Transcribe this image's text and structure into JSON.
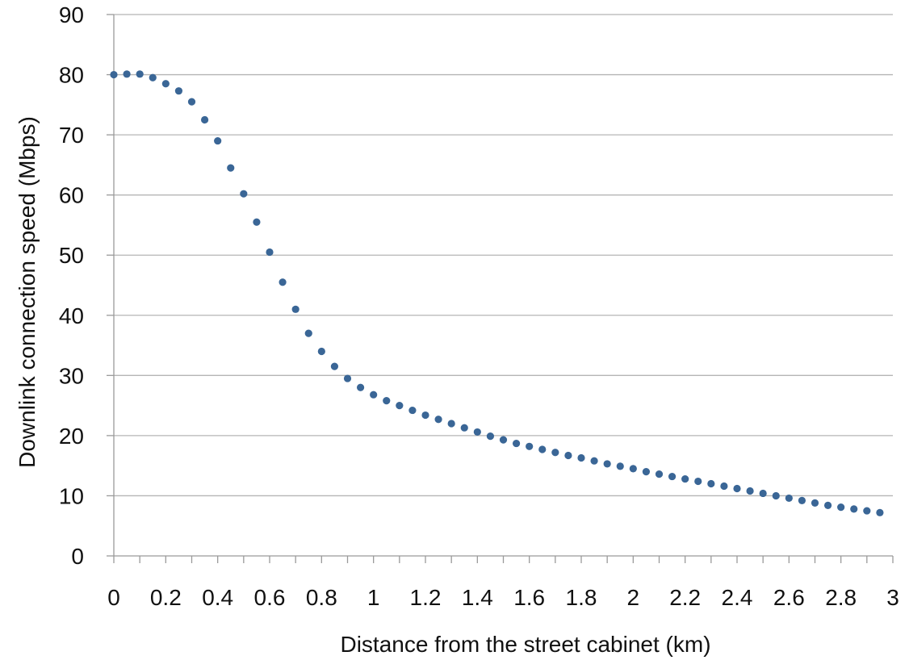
{
  "chart_data": {
    "type": "scatter",
    "title": "",
    "xlabel": "Distance from the street cabinet (km)",
    "ylabel": "Downlink connection speed (Mbps)",
    "xlim": [
      0,
      3
    ],
    "ylim": [
      0,
      90
    ],
    "x_ticks": [
      0,
      0.1,
      0.2,
      0.3,
      0.4,
      0.5,
      0.6,
      0.7,
      0.8,
      0.9,
      1,
      1.1,
      1.2,
      1.3,
      1.4,
      1.5,
      1.6,
      1.7,
      1.8,
      1.9,
      2,
      2.1,
      2.2,
      2.3,
      2.4,
      2.5,
      2.6,
      2.7,
      2.8,
      2.9,
      3
    ],
    "x_tick_labels": [
      "0",
      "0.2",
      "0.4",
      "0.6",
      "0.8",
      "1",
      "1.2",
      "1.4",
      "1.6",
      "1.8",
      "2",
      "2.2",
      "2.4",
      "2.6",
      "2.8",
      "3"
    ],
    "y_tick_labels": [
      "0",
      "10",
      "20",
      "30",
      "40",
      "50",
      "60",
      "70",
      "80",
      "90"
    ],
    "grid": "horizontal",
    "marker_color": "#3a6696",
    "series": [
      {
        "name": "",
        "x": [
          0,
          0.05,
          0.1,
          0.15,
          0.2,
          0.25,
          0.3,
          0.35,
          0.4,
          0.45,
          0.5,
          0.55,
          0.6,
          0.65,
          0.7,
          0.75,
          0.8,
          0.85,
          0.9,
          0.95,
          1.0,
          1.05,
          1.1,
          1.15,
          1.2,
          1.25,
          1.3,
          1.35,
          1.4,
          1.45,
          1.5,
          1.55,
          1.6,
          1.65,
          1.7,
          1.75,
          1.8,
          1.85,
          1.9,
          1.95,
          2.0,
          2.05,
          2.1,
          2.15,
          2.2,
          2.25,
          2.3,
          2.35,
          2.4,
          2.45,
          2.5,
          2.55,
          2.6,
          2.65,
          2.7,
          2.75,
          2.8,
          2.85,
          2.9,
          2.95
        ],
        "values": [
          80.0,
          80.1,
          80.1,
          79.5,
          78.5,
          77.3,
          75.5,
          72.5,
          69.0,
          64.5,
          60.2,
          55.5,
          50.5,
          45.5,
          41.0,
          37.0,
          34.0,
          31.5,
          29.5,
          28.0,
          26.8,
          25.8,
          25.0,
          24.2,
          23.4,
          22.7,
          22.0,
          21.3,
          20.6,
          19.9,
          19.3,
          18.7,
          18.2,
          17.7,
          17.2,
          16.7,
          16.3,
          15.8,
          15.3,
          14.9,
          14.5,
          14.0,
          13.6,
          13.2,
          12.8,
          12.4,
          12.0,
          11.6,
          11.2,
          10.8,
          10.4,
          10.0,
          9.6,
          9.2,
          8.8,
          8.4,
          8.1,
          7.8,
          7.5,
          7.2
        ]
      }
    ]
  }
}
